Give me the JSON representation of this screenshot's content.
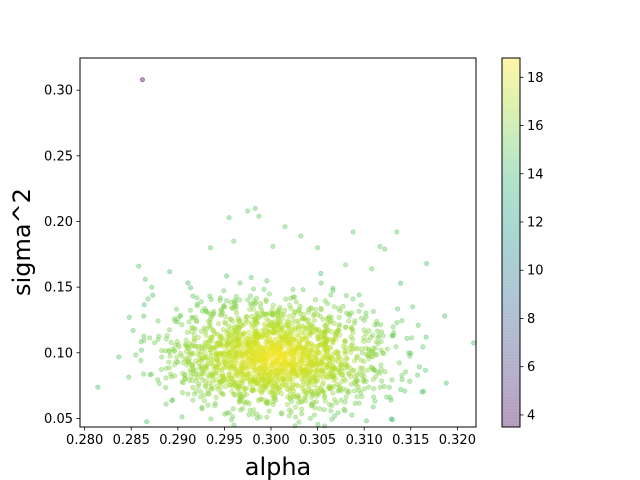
{
  "chart_data": {
    "type": "scatter",
    "title": "",
    "xlabel": "alpha",
    "ylabel": "sigma^2",
    "xlim": [
      0.2795,
      0.322
    ],
    "ylim": [
      0.0435,
      0.3245
    ],
    "xticks": [
      0.28,
      0.285,
      0.29,
      0.295,
      0.3,
      0.305,
      0.31,
      0.315,
      0.32
    ],
    "xtick_labels": [
      "0.280",
      "0.285",
      "0.290",
      "0.295",
      "0.300",
      "0.305",
      "0.310",
      "0.315",
      "0.320"
    ],
    "yticks": [
      0.05,
      0.1,
      0.15,
      0.2,
      0.25,
      0.3
    ],
    "ytick_labels": [
      "0.05",
      "0.10",
      "0.15",
      "0.20",
      "0.25",
      "0.30"
    ],
    "grid": false,
    "marker_alpha": 0.4,
    "cluster": {
      "count": 1900,
      "center": [
        0.3005,
        0.097
      ],
      "std": [
        0.0058,
        0.021
      ],
      "color_value_range": [
        14.2,
        18.7
      ]
    },
    "points": [
      {
        "x": 0.2862,
        "y": 0.308,
        "c": 3.5
      },
      {
        "x": 0.2955,
        "y": 0.203,
        "c": 14.9
      },
      {
        "x": 0.2975,
        "y": 0.208,
        "c": 14.8
      },
      {
        "x": 0.2983,
        "y": 0.21,
        "c": 14.8
      },
      {
        "x": 0.2987,
        "y": 0.204,
        "c": 14.9
      },
      {
        "x": 0.296,
        "y": 0.185,
        "c": 15.0
      },
      {
        "x": 0.3015,
        "y": 0.196,
        "c": 14.9
      },
      {
        "x": 0.3032,
        "y": 0.189,
        "c": 15.0
      },
      {
        "x": 0.3002,
        "y": 0.181,
        "c": 15.1
      },
      {
        "x": 0.3088,
        "y": 0.192,
        "c": 14.8
      },
      {
        "x": 0.3135,
        "y": 0.192,
        "c": 14.7
      },
      {
        "x": 0.3117,
        "y": 0.181,
        "c": 14.9
      },
      {
        "x": 0.3122,
        "y": 0.179,
        "c": 14.9
      },
      {
        "x": 0.3167,
        "y": 0.168,
        "c": 14.6
      },
      {
        "x": 0.305,
        "y": 0.18,
        "c": 15.0
      },
      {
        "x": 0.2935,
        "y": 0.18,
        "c": 15.0
      },
      {
        "x": 0.2865,
        "y": 0.156,
        "c": 14.8
      },
      {
        "x": 0.2858,
        "y": 0.166,
        "c": 14.7
      },
      {
        "x": 0.2848,
        "y": 0.127,
        "c": 14.6
      },
      {
        "x": 0.2852,
        "y": 0.117,
        "c": 14.6
      },
      {
        "x": 0.2861,
        "y": 0.102,
        "c": 14.7
      },
      {
        "x": 0.2872,
        "y": 0.15,
        "c": 14.8
      },
      {
        "x": 0.2868,
        "y": 0.141,
        "c": 14.8
      },
      {
        "x": 0.3152,
        "y": 0.135,
        "c": 14.7
      },
      {
        "x": 0.3158,
        "y": 0.121,
        "c": 14.8
      },
      {
        "x": 0.3148,
        "y": 0.1,
        "c": 14.8
      },
      {
        "x": 0.313,
        "y": 0.113,
        "c": 15.0
      },
      {
        "x": 0.3108,
        "y": 0.164,
        "c": 15.0
      },
      {
        "x": 0.308,
        "y": 0.167,
        "c": 15.1
      },
      {
        "x": 0.3005,
        "y": 0.064,
        "c": 15.6
      },
      {
        "x": 0.3022,
        "y": 0.063,
        "c": 15.6
      },
      {
        "x": 0.3045,
        "y": 0.068,
        "c": 15.5
      },
      {
        "x": 0.2968,
        "y": 0.066,
        "c": 15.5
      },
      {
        "x": 0.3072,
        "y": 0.071,
        "c": 15.5
      },
      {
        "x": 0.2925,
        "y": 0.088,
        "c": 15.6
      },
      {
        "x": 0.29,
        "y": 0.093,
        "c": 15.4
      },
      {
        "x": 0.311,
        "y": 0.087,
        "c": 15.4
      },
      {
        "x": 0.3098,
        "y": 0.1,
        "c": 15.6
      }
    ]
  },
  "colorbar": {
    "colormap": [
      "#440154",
      "#482878",
      "#3e4989",
      "#31688e",
      "#26828e",
      "#1f9e89",
      "#35b779",
      "#6ece58",
      "#b5de2b",
      "#fde725"
    ],
    "range": [
      3.5,
      18.8
    ],
    "ticks": [
      4,
      6,
      8,
      10,
      12,
      14,
      16,
      18
    ],
    "tick_labels": [
      "4",
      "6",
      "8",
      "10",
      "12",
      "14",
      "16",
      "18"
    ]
  }
}
